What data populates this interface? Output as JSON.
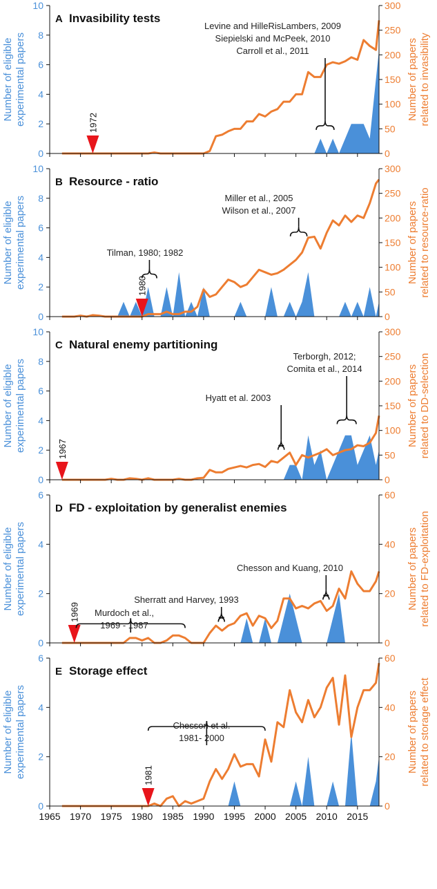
{
  "colors": {
    "papers": "#ED7D31",
    "experiments": "#4A90D9",
    "marker": "#E8151B",
    "axis": "#111111"
  },
  "x_ticks": [
    1965,
    1970,
    1975,
    1980,
    1985,
    1990,
    1995,
    2000,
    2005,
    2010,
    2015
  ],
  "chart_data": [
    {
      "type": "area+line",
      "panel": "A",
      "title": "Invasibility tests",
      "ylabel_left": [
        "Number of eligible",
        "experimental papers"
      ],
      "ylabel_right": [
        "Number of papers",
        "related to invasibility"
      ],
      "ylim_left": [
        0,
        10
      ],
      "left_ticks": [
        0,
        2,
        4,
        6,
        8,
        10
      ],
      "ylim_right": [
        0,
        300
      ],
      "right_ticks": [
        0,
        50,
        100,
        150,
        200,
        250,
        300
      ],
      "xlim": [
        1965,
        2018.5
      ],
      "marker_year": 1972,
      "marker_label": "1972",
      "annotations": [
        {
          "lines": [
            "Levine and HilleRisLambers, 2009",
            "Siepielski and McPeek, 2010",
            "Carroll et al., 2011"
          ],
          "brace": [
            2008.3,
            2011.2
          ],
          "brace_y": 45,
          "align": "left"
        }
      ],
      "experiments": {
        "x": [
          2008,
          2009,
          2010,
          2011,
          2012,
          2013,
          2014,
          2015,
          2016,
          2017,
          2018,
          2018.5
        ],
        "y": [
          0,
          1,
          0,
          1,
          0,
          1,
          2,
          2,
          2,
          1,
          5,
          7
        ]
      },
      "papers": {
        "x": [
          1967,
          1968,
          1969,
          1970,
          1971,
          1972,
          1973,
          1974,
          1975,
          1976,
          1977,
          1978,
          1979,
          1980,
          1981,
          1982,
          1983,
          1984,
          1985,
          1986,
          1987,
          1988,
          1989,
          1990,
          1991,
          1992,
          1993,
          1994,
          1995,
          1996,
          1997,
          1998,
          1999,
          2000,
          2001,
          2002,
          2003,
          2004,
          2005,
          2006,
          2007,
          2008,
          2009,
          2010,
          2011,
          2012,
          2013,
          2014,
          2015,
          2016,
          2017,
          2018,
          2018.5
        ],
        "y": [
          0,
          0,
          0,
          0,
          0,
          0,
          0,
          0,
          0,
          0,
          0,
          0,
          0,
          0,
          0,
          2,
          0,
          0,
          0,
          0,
          0,
          0,
          0,
          0,
          5,
          35,
          38,
          45,
          50,
          50,
          65,
          65,
          80,
          75,
          85,
          90,
          105,
          105,
          120,
          120,
          165,
          155,
          155,
          180,
          185,
          182,
          187,
          195,
          190,
          230,
          218,
          210,
          270
        ]
      }
    },
    {
      "type": "area+line",
      "panel": "B",
      "title": "Resource - ratio",
      "ylabel_left": [
        "Number of eligible",
        "experimental papers"
      ],
      "ylabel_right": [
        "Number of papers",
        "related to resource-ratio"
      ],
      "ylim_left": [
        0,
        10
      ],
      "left_ticks": [
        0,
        2,
        4,
        6,
        8,
        10
      ],
      "ylim_right": [
        0,
        300
      ],
      "right_ticks": [
        0,
        50,
        100,
        150,
        200,
        250,
        300
      ],
      "xlim": [
        1965,
        2018.5
      ],
      "marker_year": 1980,
      "marker_label": "1980",
      "annotations": [
        {
          "lines": [
            "Miller et al., 2005",
            "Wilson  et al., 2007"
          ],
          "brace": [
            2004.1,
            2006.8
          ],
          "brace_y": 160,
          "align": "left"
        },
        {
          "lines": [
            "Tilman, 1980; 1982"
          ],
          "brace": [
            1980,
            1982.4
          ],
          "brace_y": 75,
          "align": "left"
        }
      ],
      "experiments": {
        "x": [
          1966,
          1976,
          1977,
          1978,
          1979,
          1980,
          1981,
          1982,
          1983,
          1984,
          1985,
          1986,
          1987,
          1988,
          1989,
          1990,
          1991,
          1995,
          1996,
          1997,
          2000,
          2001,
          2002,
          2003,
          2004,
          2005,
          2006,
          2007,
          2008,
          2012,
          2013,
          2014,
          2015,
          2016,
          2017,
          2018,
          2018.5
        ],
        "y": [
          0,
          0,
          1,
          0,
          1,
          0,
          2,
          0,
          0,
          2,
          0,
          3,
          0,
          1,
          0,
          2,
          0,
          0,
          1,
          0,
          0,
          2,
          0,
          0,
          1,
          0,
          1,
          3,
          0,
          0,
          1,
          0,
          1,
          0,
          2,
          0,
          1
        ]
      },
      "papers": {
        "x": [
          1967,
          1968,
          1969,
          1970,
          1971,
          1972,
          1973,
          1974,
          1975,
          1976,
          1977,
          1978,
          1979,
          1980,
          1981,
          1982,
          1983,
          1984,
          1985,
          1986,
          1987,
          1988,
          1989,
          1990,
          1991,
          1992,
          1993,
          1994,
          1995,
          1996,
          1997,
          1998,
          1999,
          2000,
          2001,
          2002,
          2003,
          2004,
          2005,
          2006,
          2007,
          2008,
          2009,
          2010,
          2011,
          2012,
          2013,
          2014,
          2015,
          2016,
          2017,
          2018,
          2018.5
        ],
        "y": [
          0,
          0,
          0,
          2,
          0,
          3,
          2,
          0,
          0,
          0,
          0,
          0,
          0,
          0,
          5,
          5,
          5,
          10,
          5,
          5,
          10,
          10,
          20,
          55,
          40,
          45,
          60,
          75,
          70,
          60,
          65,
          80,
          95,
          90,
          85,
          88,
          95,
          105,
          115,
          130,
          160,
          162,
          138,
          170,
          195,
          185,
          205,
          192,
          205,
          200,
          230,
          270,
          278
        ]
      }
    },
    {
      "type": "area+line",
      "panel": "C",
      "title": "Natural enemy partitioning",
      "ylabel_left": [
        "Number of eligible",
        "experimental papers"
      ],
      "ylabel_right": [
        "Number of papers",
        "related to DD-selection"
      ],
      "ylim_left": [
        0,
        10
      ],
      "left_ticks": [
        0,
        2,
        4,
        6,
        8,
        10
      ],
      "ylim_right": [
        0,
        300
      ],
      "right_ticks": [
        0,
        50,
        100,
        150,
        200,
        250,
        300
      ],
      "xlim": [
        1965,
        2018.5
      ],
      "marker_year": 1967,
      "marker_label": "1967",
      "annotations": [
        {
          "lines": [
            "Terborgh, 2012;",
            "Comita et al., 2014"
          ],
          "brace": [
            2011.7,
            2014.8
          ],
          "brace_y": 110,
          "align": "center"
        },
        {
          "lines": [
            "Hyatt et al.  2003"
          ],
          "brace": [
            2002.1,
            2003.1
          ],
          "brace_y": 58,
          "align": "center"
        }
      ],
      "experiments": {
        "x": [
          2003,
          2004,
          2005,
          2006,
          2007,
          2008,
          2009,
          2010,
          2011,
          2012,
          2013,
          2014,
          2015,
          2016,
          2017,
          2018,
          2018.5
        ],
        "y": [
          0,
          1,
          1,
          0,
          3,
          1,
          2,
          0,
          1,
          2,
          3,
          3,
          1,
          2,
          3,
          1,
          2
        ]
      },
      "papers": {
        "x": [
          1967,
          1968,
          1969,
          1970,
          1971,
          1972,
          1973,
          1974,
          1975,
          1976,
          1977,
          1978,
          1979,
          1980,
          1981,
          1982,
          1983,
          1984,
          1985,
          1986,
          1987,
          1988,
          1989,
          1990,
          1991,
          1992,
          1993,
          1994,
          1995,
          1996,
          1997,
          1998,
          1999,
          2000,
          2001,
          2002,
          2003,
          2004,
          2005,
          2006,
          2007,
          2008,
          2009,
          2010,
          2011,
          2012,
          2013,
          2014,
          2015,
          2016,
          2017,
          2018,
          2018.5
        ],
        "y": [
          0,
          0,
          0,
          0,
          0,
          0,
          0,
          0,
          2,
          0,
          0,
          3,
          2,
          0,
          3,
          0,
          0,
          0,
          0,
          2,
          0,
          0,
          3,
          4,
          20,
          15,
          15,
          22,
          25,
          28,
          25,
          30,
          32,
          26,
          38,
          35,
          45,
          55,
          30,
          50,
          45,
          50,
          55,
          62,
          50,
          55,
          60,
          62,
          70,
          68,
          75,
          95,
          130
        ]
      }
    },
    {
      "type": "area+line",
      "panel": "D",
      "title": "FD - exploitation by generalist enemies",
      "ylabel_left": [
        "Number of eligible",
        "experimental papers"
      ],
      "ylabel_right": [
        "Number of papers",
        "related to FD-exploitation"
      ],
      "ylim_left": [
        0,
        6
      ],
      "left_ticks": [
        0,
        2,
        4,
        6
      ],
      "ylim_right": [
        0,
        60
      ],
      "right_ticks": [
        0,
        20,
        40,
        60
      ],
      "xlim": [
        1965,
        2018.5
      ],
      "marker_year": 1969,
      "marker_label": "1969",
      "annotations": [
        {
          "lines": [
            "Chesson and Kuang, 2010"
          ],
          "brace": [
            2009.4,
            2010.4
          ],
          "brace_y": 17,
          "align": "center"
        },
        {
          "lines": [
            "Sherratt and Harvey, 1993"
          ],
          "brace": [
            1992.4,
            1993.4
          ],
          "brace_y": 8,
          "align": "center"
        },
        {
          "lines": [
            "Murdoch et al.,",
            "1969 - 1987"
          ],
          "brace": [
            1969.3,
            1987
          ],
          "brace_y": 5.5,
          "align": "center"
        }
      ],
      "experiments": {
        "x": [
          1996,
          1997,
          1998,
          1999,
          2000,
          2001,
          2002,
          2003,
          2004,
          2005,
          2006,
          2010,
          2011,
          2012,
          2013
        ],
        "y": [
          0,
          1,
          0,
          0,
          1,
          0,
          0,
          1,
          2,
          1,
          0,
          0,
          1,
          2,
          0
        ]
      },
      "papers": {
        "x": [
          1967,
          1968,
          1969,
          1970,
          1971,
          1972,
          1973,
          1974,
          1975,
          1976,
          1977,
          1978,
          1979,
          1980,
          1981,
          1982,
          1983,
          1984,
          1985,
          1986,
          1987,
          1988,
          1989,
          1990,
          1991,
          1992,
          1993,
          1994,
          1995,
          1996,
          1997,
          1998,
          1999,
          2000,
          2001,
          2002,
          2003,
          2004,
          2005,
          2006,
          2007,
          2008,
          2009,
          2010,
          2011,
          2012,
          2013,
          2014,
          2015,
          2016,
          2017,
          2018,
          2018.5
        ],
        "y": [
          0,
          0,
          0,
          0,
          0,
          0,
          0,
          0,
          0,
          0,
          0,
          2,
          2,
          1,
          2,
          0,
          0,
          1,
          3,
          3,
          2,
          0,
          0,
          0,
          4,
          7,
          5,
          7,
          8,
          11,
          12,
          7,
          11,
          10,
          6,
          9,
          18,
          18,
          14,
          15,
          14,
          16,
          17,
          13,
          15,
          22,
          18,
          29,
          24,
          21,
          21,
          25,
          29
        ]
      }
    },
    {
      "type": "area+line",
      "panel": "E",
      "title": "Storage effect",
      "ylabel_left": [
        "Number of eligible",
        "experimental papers"
      ],
      "ylabel_right": [
        "Number of papers",
        "related to storage effect"
      ],
      "ylim_left": [
        0,
        6
      ],
      "left_ticks": [
        0,
        2,
        4,
        6
      ],
      "ylim_right": [
        0,
        60
      ],
      "right_ticks": [
        0,
        20,
        40,
        60
      ],
      "xlim": [
        1965,
        2018.5
      ],
      "marker_year": 1981,
      "marker_label": "1981",
      "annotations": [
        {
          "lines": [
            "Chesson et al.",
            "1981- 2000"
          ],
          "brace": [
            1981,
            2000
          ],
          "brace_y": 30,
          "align": "center"
        }
      ],
      "experiments": {
        "x": [
          1994,
          1995,
          1996,
          2004,
          2005,
          2006,
          2007,
          2008,
          2010,
          2011,
          2012,
          2013,
          2014,
          2015,
          2017,
          2018,
          2018.5
        ],
        "y": [
          0,
          1,
          0,
          0,
          1,
          0,
          2,
          0,
          0,
          1,
          0,
          0,
          3,
          0,
          0,
          1,
          2
        ]
      },
      "papers": {
        "x": [
          1967,
          1968,
          1969,
          1970,
          1971,
          1972,
          1973,
          1974,
          1975,
          1976,
          1977,
          1978,
          1979,
          1980,
          1981,
          1982,
          1983,
          1984,
          1985,
          1986,
          1987,
          1988,
          1989,
          1990,
          1991,
          1992,
          1993,
          1994,
          1995,
          1996,
          1997,
          1998,
          1999,
          2000,
          2001,
          2002,
          2003,
          2004,
          2005,
          2006,
          2007,
          2008,
          2009,
          2010,
          2011,
          2012,
          2013,
          2014,
          2015,
          2016,
          2017,
          2018,
          2018.5
        ],
        "y": [
          0,
          0,
          0,
          0,
          0,
          0,
          0,
          0,
          0,
          0,
          0,
          0,
          0,
          0,
          0,
          1,
          0,
          3,
          4,
          0,
          2,
          1,
          2,
          3,
          10,
          15,
          11,
          15,
          21,
          16,
          17,
          17,
          12,
          27,
          18,
          34,
          32,
          47,
          38,
          34,
          43,
          36,
          40,
          48,
          52,
          33,
          53,
          28,
          40,
          47,
          47,
          50,
          58
        ]
      }
    }
  ]
}
